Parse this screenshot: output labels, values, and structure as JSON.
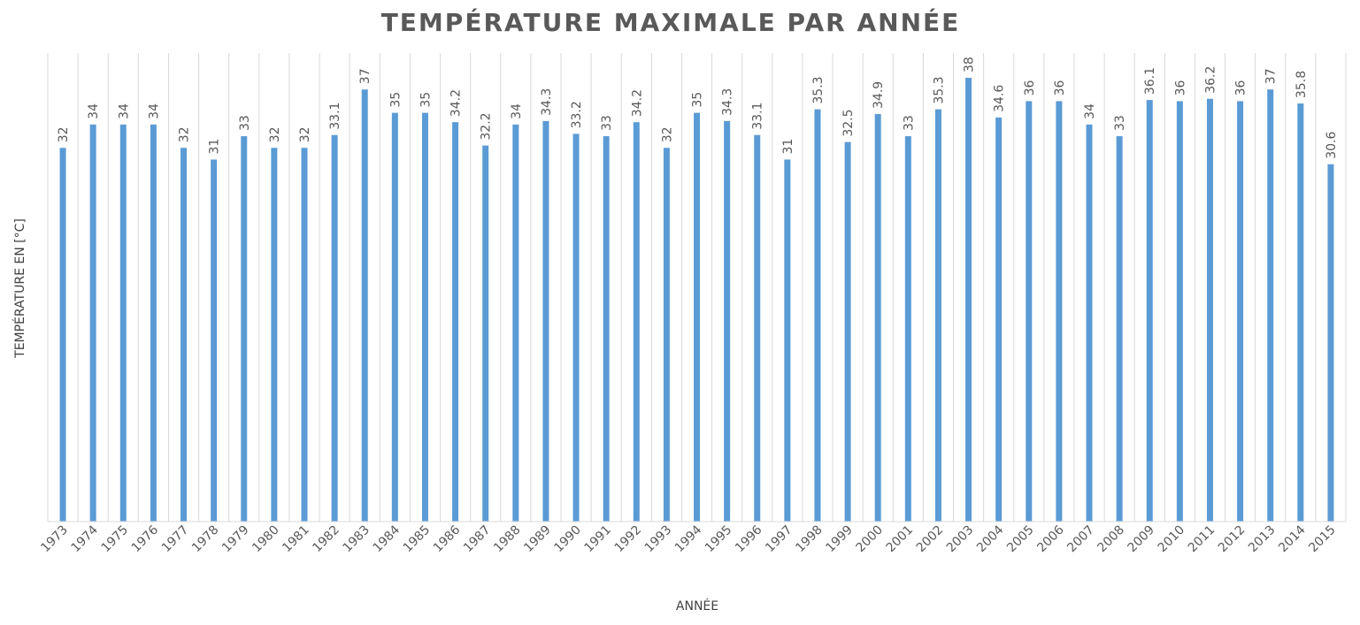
{
  "chart_data": {
    "type": "bar",
    "title": "TEMPÉRATURE MAXIMALE PAR ANNÉE",
    "xlabel": "ANNÉE",
    "ylabel": "TEMPÉRATURE EN [°C]",
    "categories": [
      "1973",
      "1974",
      "1975",
      "1976",
      "1977",
      "1978",
      "1979",
      "1980",
      "1981",
      "1982",
      "1983",
      "1984",
      "1985",
      "1986",
      "1987",
      "1988",
      "1989",
      "1990",
      "1991",
      "1992",
      "1993",
      "1994",
      "1995",
      "1996",
      "1997",
      "1998",
      "1999",
      "2000",
      "2001",
      "2002",
      "2003",
      "2004",
      "2005",
      "2006",
      "2007",
      "2008",
      "2009",
      "2010",
      "2011",
      "2012",
      "2013",
      "2014",
      "2015"
    ],
    "values": [
      32,
      34,
      34,
      34,
      32,
      31,
      33,
      32,
      32,
      33.1,
      37,
      35,
      35,
      34.2,
      32.2,
      34,
      34.3,
      33.2,
      33,
      34.2,
      32,
      35,
      34.3,
      33.1,
      31,
      35.3,
      32.5,
      34.9,
      33,
      35.3,
      38,
      34.6,
      36,
      36,
      34,
      33,
      36.1,
      36,
      36.2,
      36,
      37,
      35.8,
      30.6
    ],
    "data_labels": [
      "32",
      "34",
      "34",
      "34",
      "32",
      "31",
      "33",
      "32",
      "32",
      "33.1",
      "37",
      "35",
      "35",
      "34.2",
      "32.2",
      "34",
      "34.3",
      "33.2",
      "33",
      "34.2",
      "32",
      "35",
      "34.3",
      "33.1",
      "31",
      "35.3",
      "32.5",
      "34.9",
      "33",
      "35.3",
      "38",
      "34.6",
      "36",
      "36",
      "34",
      "33",
      "36.1",
      "36",
      "36.2",
      "36",
      "37",
      "35.8",
      "30.6"
    ],
    "ylim": [
      0,
      40
    ],
    "grid": "vertical",
    "legend": "none",
    "bar_color": "#5b9bd5"
  }
}
